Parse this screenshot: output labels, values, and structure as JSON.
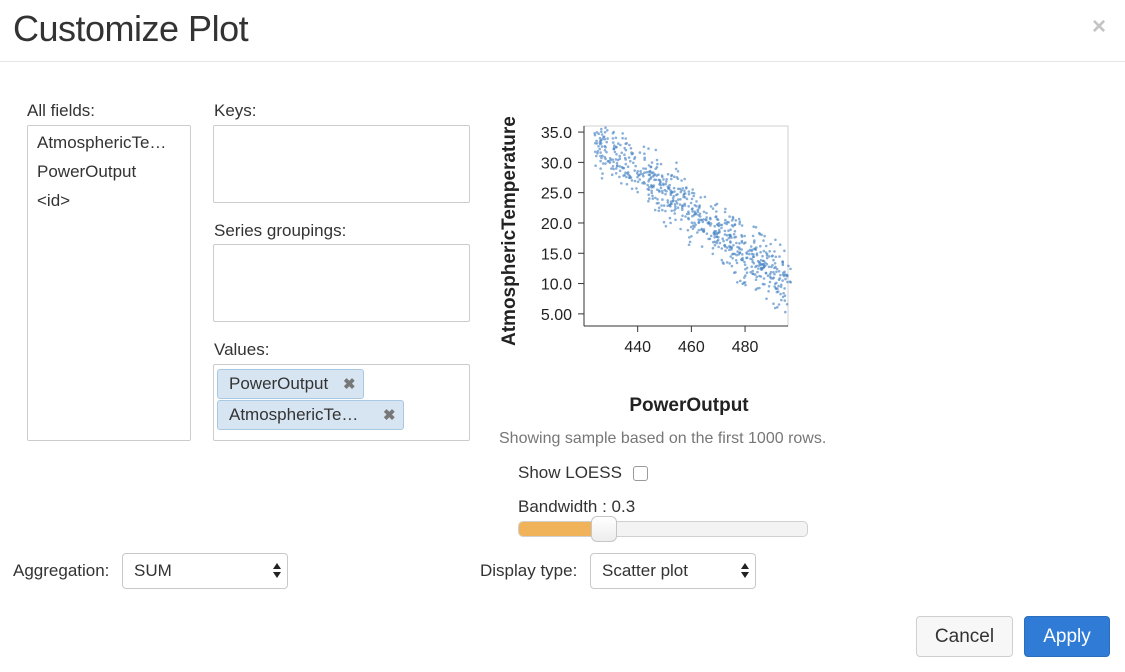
{
  "dialog": {
    "title": "Customize Plot",
    "close_symbol": "×"
  },
  "all_fields": {
    "label": "All fields:",
    "items": [
      "AtmosphericTe…",
      "PowerOutput",
      "<id>"
    ]
  },
  "keys": {
    "label": "Keys:"
  },
  "series_groupings": {
    "label": "Series groupings:"
  },
  "values": {
    "label": "Values:",
    "items": [
      "PowerOutput",
      "AtmosphericTe…"
    ],
    "remove_symbol": "✖"
  },
  "aggregation": {
    "label": "Aggregation:",
    "selected": "SUM"
  },
  "display_type": {
    "label": "Display type:",
    "selected": "Scatter plot"
  },
  "plot_options": {
    "sample_note": "Showing sample based on the first 1000 rows.",
    "show_loess_label": "Show LOESS",
    "show_loess_checked": false,
    "bandwidth_label": "Bandwidth : 0.3",
    "bandwidth_value": 0.3,
    "bandwidth_fill_fraction": 0.3
  },
  "buttons": {
    "cancel": "Cancel",
    "apply": "Apply"
  },
  "colors": {
    "accent": "#2f7bd6",
    "pill_bg": "#d7e5f2",
    "point": "#4a86c5",
    "slider_fill": "#f0b35a"
  },
  "chart_data": {
    "type": "scatter",
    "xlabel": "PowerOutput",
    "ylabel": "AtmosphericTemperature",
    "x_ticks": [
      "440",
      "460",
      "480"
    ],
    "y_ticks": [
      "35.0",
      "30.0",
      "25.0",
      "20.0",
      "15.0",
      "10.0",
      "5.00"
    ],
    "xlim": [
      420,
      496
    ],
    "ylim": [
      3,
      36
    ],
    "trend": {
      "slope": -0.34,
      "intercept": 178.4,
      "spread": 2.2
    },
    "sample_size": 1000,
    "points_sample": [
      [
        425,
        31.5
      ],
      [
        428,
        29.8
      ],
      [
        432,
        28.2
      ],
      [
        436,
        26.4
      ],
      [
        440,
        25.1
      ],
      [
        444,
        23.6
      ],
      [
        448,
        22.5
      ],
      [
        452,
        20.8
      ],
      [
        456,
        19.0
      ],
      [
        460,
        17.8
      ],
      [
        464,
        16.1
      ],
      [
        468,
        14.9
      ],
      [
        472,
        13.3
      ],
      [
        476,
        11.8
      ],
      [
        480,
        10.2
      ],
      [
        484,
        9.0
      ],
      [
        488,
        7.5
      ],
      [
        492,
        6.1
      ],
      [
        495,
        5.3
      ]
    ]
  }
}
